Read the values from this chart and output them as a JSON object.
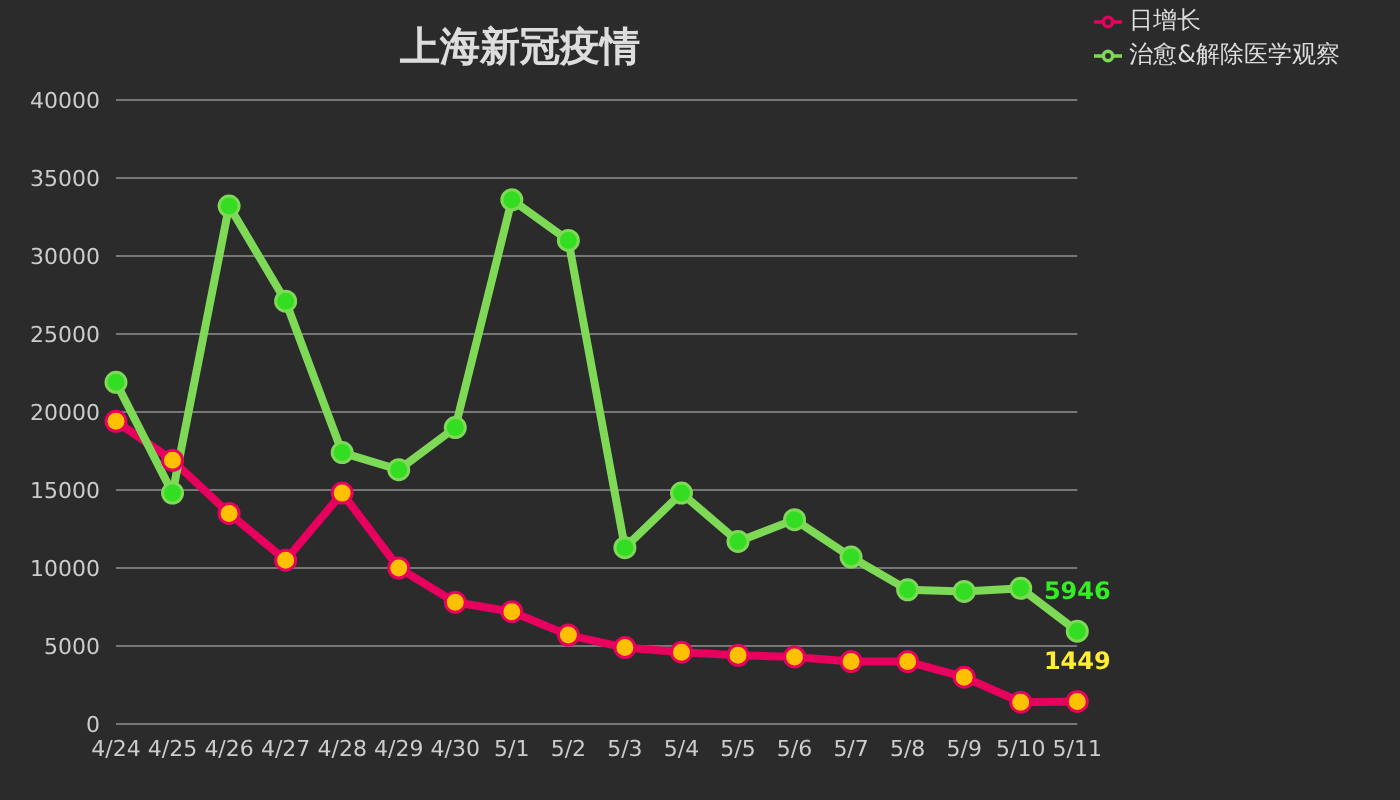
{
  "chart_data": {
    "type": "line",
    "title": "上海新冠疫情",
    "categories": [
      "4/24",
      "4/25",
      "4/26",
      "4/27",
      "4/28",
      "4/29",
      "4/30",
      "5/1",
      "5/2",
      "5/3",
      "5/4",
      "5/5",
      "5/6",
      "5/7",
      "5/8",
      "5/9",
      "5/10",
      "5/11"
    ],
    "series": [
      {
        "name": "日增长",
        "color": "#e8005f",
        "values": [
          19400,
          16900,
          13500,
          10500,
          14800,
          10000,
          7800,
          7200,
          5700,
          4900,
          4600,
          4400,
          4300,
          4000,
          4000,
          3000,
          1400,
          1449
        ],
        "value_labels": [
          null,
          null,
          null,
          null,
          null,
          null,
          null,
          null,
          null,
          null,
          null,
          null,
          null,
          null,
          null,
          null,
          null,
          "1449"
        ]
      },
      {
        "name": "治愈&解除医学观察",
        "color": "#7ed957",
        "values": [
          21900,
          14800,
          33200,
          27100,
          17400,
          16300,
          19000,
          33600,
          31000,
          11300,
          14800,
          11700,
          13100,
          10700,
          8600,
          8500,
          8700,
          5946
        ],
        "value_labels": [
          null,
          null,
          null,
          null,
          null,
          null,
          null,
          null,
          null,
          null,
          null,
          null,
          null,
          null,
          null,
          null,
          null,
          "5946"
        ]
      }
    ],
    "ylim": [
      0,
      40000
    ],
    "yticks": [
      0,
      5000,
      10000,
      15000,
      20000,
      25000,
      30000,
      35000,
      40000
    ],
    "grid": "y",
    "legend": "top right",
    "marker": "circle",
    "line_style": "solid"
  }
}
